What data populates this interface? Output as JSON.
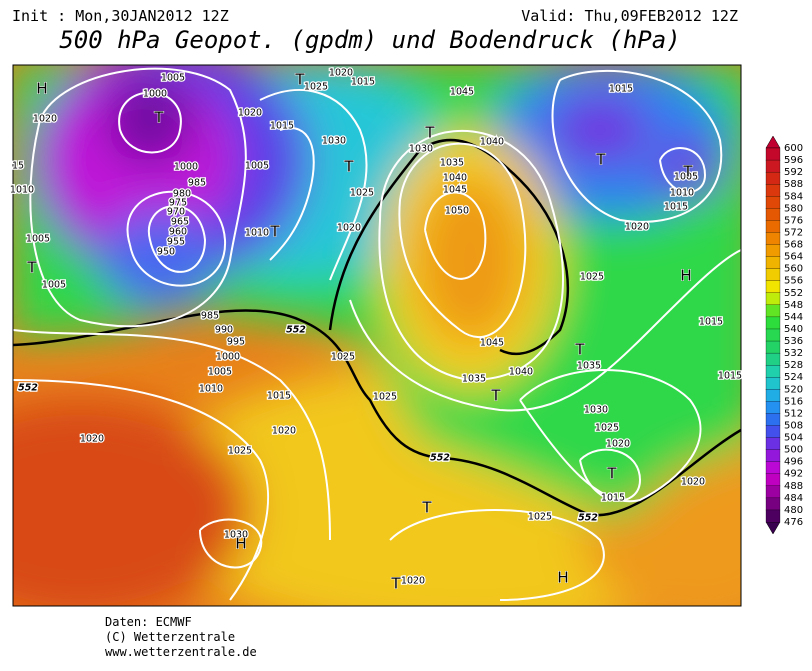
{
  "header": {
    "init": "Init : Mon,30JAN2012 12Z",
    "valid": "Valid: Thu,09FEB2012 12Z",
    "title": "500 hPa Geopot. (gpdm) und Bodendruck (hPa)"
  },
  "legend": {
    "levels": [
      600,
      596,
      592,
      588,
      584,
      580,
      576,
      572,
      568,
      564,
      560,
      556,
      552,
      548,
      544,
      540,
      536,
      532,
      528,
      524,
      520,
      516,
      512,
      508,
      504,
      500,
      496,
      492,
      488,
      484,
      480,
      476
    ]
  },
  "isobar_labels": [
    "1010",
    "1005",
    "1000",
    "1020",
    "1020",
    "1015",
    "1020",
    "1015",
    "1025",
    "1045",
    "1030",
    "1030",
    "1040",
    "1035",
    "1040",
    "1045",
    "1050",
    "1025",
    "1005",
    "1000",
    "985",
    "980",
    "975",
    "970",
    "965",
    "960",
    "955",
    "950",
    "1010",
    "1020",
    "1015",
    "1005",
    "1010",
    "1015",
    "1020",
    "1025",
    "1015",
    "985",
    "990",
    "995",
    "1000",
    "1005",
    "1010",
    "1015",
    "1020",
    "1025",
    "1025",
    "1045",
    "1035",
    "1040",
    "1035",
    "1030",
    "1025",
    "1020",
    "1015",
    "1020",
    "1025",
    "1020",
    "1025",
    "1030",
    "1020",
    "1005",
    "1005",
    "1015",
    "15",
    "1010"
  ],
  "contour_552_labels": [
    "552",
    "552",
    "552",
    "552"
  ],
  "pressure_centers": [
    "H",
    "T",
    "T",
    "T",
    "T",
    "T",
    "T",
    "T",
    "H",
    "T",
    "T",
    "T",
    "T",
    "H",
    "T",
    "H",
    "T"
  ],
  "footer": {
    "source": "Daten: ECMWF",
    "copyright": "(C) Wetterzentrale",
    "url": "www.wetterzentrale.de"
  }
}
